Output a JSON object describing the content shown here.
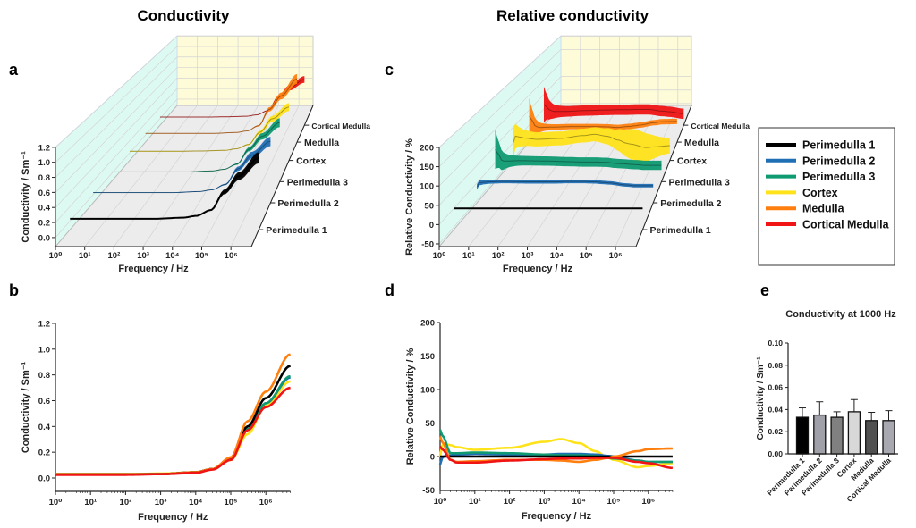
{
  "titles": {
    "left": "Conductivity",
    "right": "Relative conductivity"
  },
  "panel_labels": {
    "a": "a",
    "b": "b",
    "c": "c",
    "d": "d",
    "e": "e"
  },
  "colors": {
    "Perimedulla 1": "#000000",
    "Perimedulla 2": "#1f6fb5",
    "Perimedulla 3": "#0f9a72",
    "Cortex": "#ffe31a",
    "Medulla": "#ff7f0e",
    "Cortical Medulla": "#f01414",
    "back_wall": "#fdfbd8",
    "side_wall": "#ddfaf2",
    "floor": "#ececec"
  },
  "legend": [
    "Perimedulla 1",
    "Perimedulla 2",
    "Perimedulla 3",
    "Cortex",
    "Medulla",
    "Cortical Medulla"
  ],
  "chart_data": [
    {
      "id": "a",
      "type": "line-3d",
      "xlabel": "Frequency / Hz",
      "ylabel": "Conductivity / Sm⁻¹",
      "x_scale": "log",
      "xlim": [
        1,
        5000000
      ],
      "x_ticks": [
        "10⁰",
        "10¹",
        "10²",
        "10³",
        "10⁴",
        "10⁵",
        "10⁶"
      ],
      "ylim": [
        0,
        1.2
      ],
      "y_ticks": [
        "0.0",
        "0.2",
        "0.4",
        "0.6",
        "0.8",
        "1.0",
        "1.2"
      ],
      "depth_labels": [
        "Perimedulla 1",
        "Perimedulla 2",
        "Perimedulla 3",
        "Cortex",
        "Medulla",
        "Cortical Medulla"
      ],
      "x": [
        1,
        10,
        100,
        1000,
        10000,
        30000,
        100000,
        300000,
        1000000,
        5000000
      ],
      "series": [
        {
          "name": "Perimedulla 1",
          "values": [
            0.03,
            0.03,
            0.03,
            0.03,
            0.045,
            0.07,
            0.15,
            0.4,
            0.62,
            0.87
          ]
        },
        {
          "name": "Perimedulla 2",
          "values": [
            0.03,
            0.03,
            0.03,
            0.03,
            0.045,
            0.07,
            0.15,
            0.38,
            0.58,
            0.78
          ]
        },
        {
          "name": "Perimedulla 3",
          "values": [
            0.03,
            0.03,
            0.03,
            0.03,
            0.045,
            0.07,
            0.15,
            0.38,
            0.58,
            0.79
          ]
        },
        {
          "name": "Cortex",
          "values": [
            0.03,
            0.03,
            0.03,
            0.035,
            0.045,
            0.07,
            0.14,
            0.34,
            0.56,
            0.75
          ]
        },
        {
          "name": "Medulla",
          "values": [
            0.03,
            0.03,
            0.03,
            0.03,
            0.045,
            0.07,
            0.16,
            0.44,
            0.67,
            0.96
          ]
        },
        {
          "name": "Cortical Medulla",
          "values": [
            0.025,
            0.025,
            0.025,
            0.03,
            0.04,
            0.065,
            0.14,
            0.37,
            0.55,
            0.7
          ]
        }
      ]
    },
    {
      "id": "b",
      "type": "line",
      "xlabel": "Frequency / Hz",
      "ylabel": "Conductivity / Sm⁻¹",
      "x_scale": "log",
      "xlim": [
        1,
        5000000
      ],
      "x_ticks": [
        "10⁰",
        "10¹",
        "10²",
        "10³",
        "10⁴",
        "10⁵",
        "10⁶"
      ],
      "ylim": [
        -0.1,
        1.2
      ],
      "y_ticks": [
        "0.0",
        "0.2",
        "0.4",
        "0.6",
        "0.8",
        "1.0",
        "1.2"
      ],
      "same_data_as": "a"
    },
    {
      "id": "c",
      "type": "line-3d",
      "xlabel": "Frequency / Hz",
      "ylabel": "Relative Conductivity / %",
      "x_scale": "log",
      "xlim": [
        1,
        5000000
      ],
      "x_ticks": [
        "10⁰",
        "10¹",
        "10²",
        "10³",
        "10⁴",
        "10⁵",
        "10⁶"
      ],
      "ylim": [
        -50,
        200
      ],
      "y_ticks": [
        "-50",
        "0",
        "50",
        "100",
        "150",
        "200"
      ],
      "depth_labels": [
        "Perimedulla 1",
        "Perimedulla 2",
        "Perimedulla 3",
        "Cortex",
        "Medulla",
        "Cortical Medulla"
      ],
      "x": [
        1,
        1.2,
        2,
        3,
        10,
        100,
        1000,
        3000,
        10000,
        30000,
        70000,
        100000,
        500000,
        1000000,
        5000000
      ],
      "series": [
        {
          "name": "Perimedulla 1",
          "values": [
            0,
            0,
            0,
            0,
            0,
            0,
            0,
            0,
            0,
            0,
            0,
            0,
            0,
            0,
            0
          ]
        },
        {
          "name": "Perimedulla 2",
          "values": [
            -12,
            0,
            2,
            3,
            4,
            3,
            3,
            4,
            4,
            3,
            1,
            0,
            -6,
            -8,
            -8
          ]
        },
        {
          "name": "Perimedulla 3",
          "values": [
            40,
            30,
            5,
            5,
            6,
            5,
            3,
            2,
            2,
            1,
            -2,
            -3,
            -6,
            -8,
            -8
          ]
        },
        {
          "name": "Cortex",
          "values": [
            0,
            20,
            17,
            14,
            10,
            13,
            22,
            26,
            20,
            8,
            -2,
            -5,
            -16,
            -14,
            -10
          ]
        },
        {
          "name": "Medulla",
          "values": [
            30,
            20,
            -5,
            -8,
            -7,
            -5,
            -5,
            -6,
            -8,
            -5,
            -2,
            0,
            8,
            11,
            12
          ]
        },
        {
          "name": "Cortical Medulla",
          "values": [
            15,
            10,
            -5,
            -9,
            -9,
            -6,
            -4,
            -3,
            -3,
            -2,
            -2,
            -2,
            -8,
            -10,
            -17
          ]
        }
      ]
    },
    {
      "id": "d",
      "type": "line",
      "xlabel": "Frequency / Hz",
      "ylabel": "Relative Conductivity / %",
      "x_scale": "log",
      "xlim": [
        1,
        5000000
      ],
      "x_ticks": [
        "10⁰",
        "10¹",
        "10²",
        "10³",
        "10⁴",
        "10⁵",
        "10⁶"
      ],
      "ylim": [
        -50,
        200
      ],
      "y_ticks": [
        "-50",
        "0",
        "50",
        "100",
        "150",
        "200"
      ],
      "same_data_as": "c"
    },
    {
      "id": "e",
      "type": "bar",
      "title": "Conductivity at 1000 Hz",
      "ylabel": "Conductivity / Sm⁻¹",
      "ylim": [
        0,
        0.1
      ],
      "y_ticks": [
        "0.00",
        "0.02",
        "0.04",
        "0.06",
        "0.08",
        "0.10"
      ],
      "categories": [
        "Perimedulla 1",
        "Perimedulla 2",
        "Perimedulla 3",
        "Cortex",
        "Medulla",
        "Cortical Medulla"
      ],
      "values": [
        0.033,
        0.035,
        0.033,
        0.038,
        0.03,
        0.03
      ],
      "errors": [
        0.0085,
        0.012,
        0.005,
        0.011,
        0.0075,
        0.009
      ],
      "bar_colors": [
        "#000000",
        "#a0a0a8",
        "#808080",
        "#d8d8d8",
        "#505050",
        "#a8a8b0"
      ]
    }
  ]
}
